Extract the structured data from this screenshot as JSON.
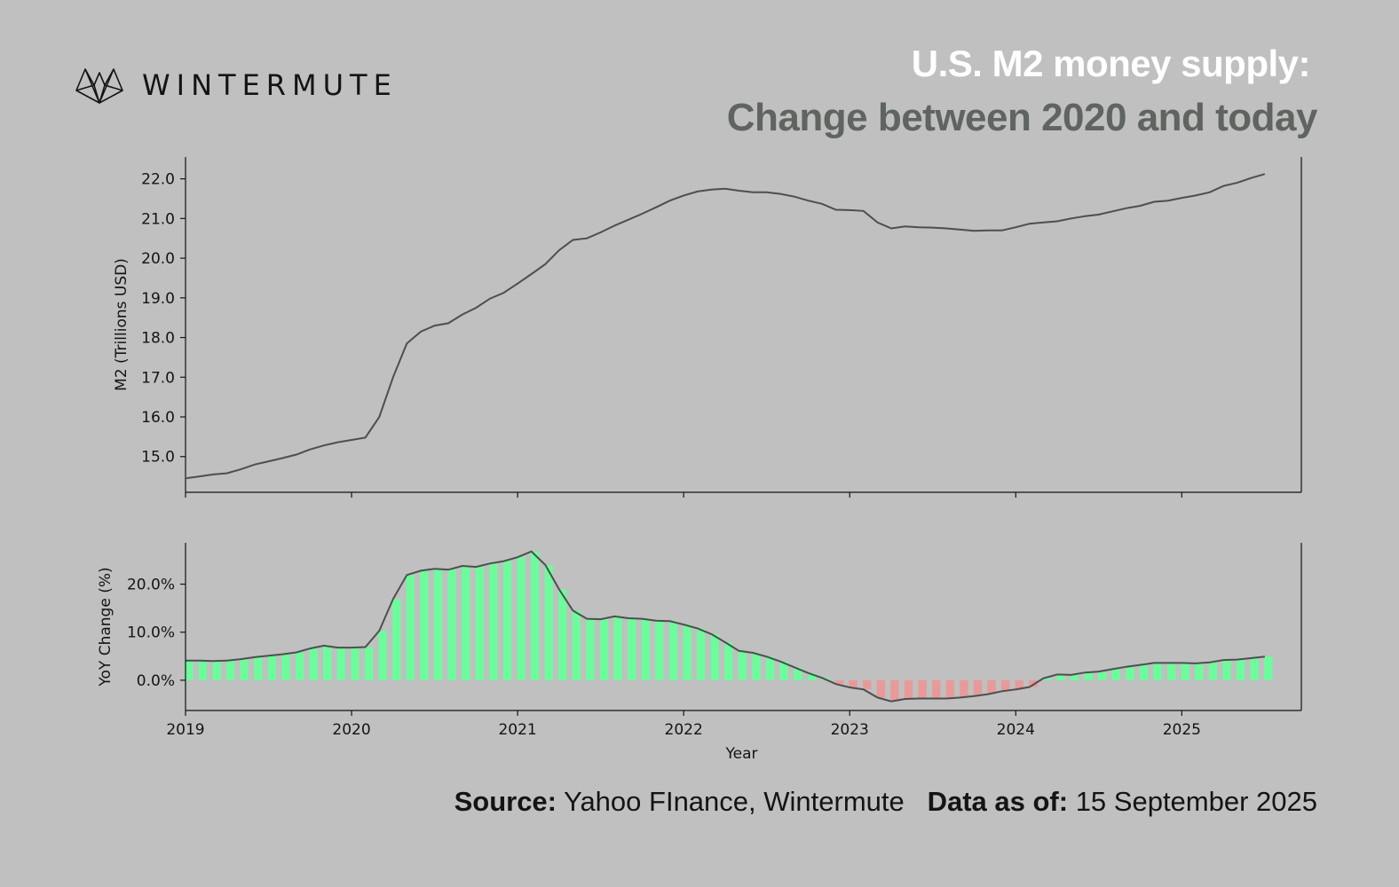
{
  "brand": {
    "name": "WINTERMUTE",
    "logo_icon": "wintermute-logo-icon"
  },
  "title": {
    "line1": "U.S. M2 money supply:",
    "line2": "Change between 2020 and today"
  },
  "footer": {
    "source_label": "Source:",
    "source_value": "Yahoo FInance, Wintermute",
    "date_label": "Data as of:",
    "date_value": "15 September 2025"
  },
  "colors": {
    "background": "#bfc0bf",
    "line": "#4d4f4e",
    "bar_positive": "#6dfc9c",
    "bar_negative": "#e89a9a",
    "title_primary": "#ffffff",
    "title_secondary": "#5f6461"
  },
  "chart_data": [
    {
      "type": "line",
      "title": "",
      "xlabel": "",
      "ylabel": "M2 (Trillions USD)",
      "ylim": [
        14.1,
        22.55
      ],
      "xlim": [
        2019.0,
        2025.72
      ],
      "y_ticks": [
        "15.0",
        "16.0",
        "17.0",
        "18.0",
        "19.0",
        "20.0",
        "21.0",
        "22.0"
      ],
      "series": [
        {
          "x": [
            2019.0,
            2019.083,
            2019.167,
            2019.25,
            2019.333,
            2019.417,
            2019.5,
            2019.583,
            2019.667,
            2019.75,
            2019.833,
            2019.917,
            2020.0,
            2020.083,
            2020.167,
            2020.25,
            2020.333,
            2020.417,
            2020.5,
            2020.583,
            2020.667,
            2020.75,
            2020.833,
            2020.917,
            2021.0,
            2021.083,
            2021.167,
            2021.25,
            2021.333,
            2021.417,
            2021.5,
            2021.583,
            2021.667,
            2021.75,
            2021.833,
            2021.917,
            2022.0,
            2022.083,
            2022.167,
            2022.25,
            2022.333,
            2022.417,
            2022.5,
            2022.583,
            2022.667,
            2022.75,
            2022.833,
            2022.917,
            2023.0,
            2023.083,
            2023.167,
            2023.25,
            2023.333,
            2023.417,
            2023.5,
            2023.583,
            2023.667,
            2023.75,
            2023.833,
            2023.917,
            2024.0,
            2024.083,
            2024.167,
            2024.25,
            2024.333,
            2024.417,
            2024.5,
            2024.583,
            2024.667,
            2024.75,
            2024.833,
            2024.917,
            2025.0,
            2025.083,
            2025.167,
            2025.25,
            2025.333,
            2025.417,
            2025.5
          ],
          "values": [
            14.45,
            14.5,
            14.55,
            14.58,
            14.68,
            14.8,
            14.88,
            14.96,
            15.05,
            15.18,
            15.28,
            15.36,
            15.42,
            15.48,
            16.0,
            17.0,
            17.85,
            18.15,
            18.3,
            18.36,
            18.58,
            18.75,
            18.98,
            19.13,
            19.36,
            19.6,
            19.85,
            20.2,
            20.46,
            20.5,
            20.65,
            20.82,
            20.97,
            21.12,
            21.28,
            21.45,
            21.58,
            21.68,
            21.73,
            21.75,
            21.7,
            21.66,
            21.66,
            21.62,
            21.55,
            21.45,
            21.37,
            21.22,
            21.21,
            21.19,
            20.9,
            20.75,
            20.8,
            20.78,
            20.77,
            20.75,
            20.72,
            20.69,
            20.7,
            20.7,
            20.78,
            20.87,
            20.9,
            20.93,
            21.0,
            21.06,
            21.1,
            21.18,
            21.26,
            21.32,
            21.42,
            21.45,
            21.52,
            21.58,
            21.66,
            21.82,
            21.9,
            22.02,
            22.12
          ]
        }
      ]
    },
    {
      "type": "bar",
      "title": "",
      "xlabel": "Year",
      "ylabel": "YoY Change (%)",
      "ylim": [
        -6.3,
        28.6
      ],
      "xlim": [
        2019.0,
        2025.72
      ],
      "x_ticks": [
        "2019",
        "2020",
        "2021",
        "2022",
        "2023",
        "2024",
        "2025"
      ],
      "y_ticks": [
        "0.0%",
        "10.0%",
        "20.0%"
      ],
      "series": [
        {
          "x": [
            2019.0,
            2019.083,
            2019.167,
            2019.25,
            2019.333,
            2019.417,
            2019.5,
            2019.583,
            2019.667,
            2019.75,
            2019.833,
            2019.917,
            2020.0,
            2020.083,
            2020.167,
            2020.25,
            2020.333,
            2020.417,
            2020.5,
            2020.583,
            2020.667,
            2020.75,
            2020.833,
            2020.917,
            2021.0,
            2021.083,
            2021.167,
            2021.25,
            2021.333,
            2021.417,
            2021.5,
            2021.583,
            2021.667,
            2021.75,
            2021.833,
            2021.917,
            2022.0,
            2022.083,
            2022.167,
            2022.25,
            2022.333,
            2022.417,
            2022.5,
            2022.583,
            2022.667,
            2022.75,
            2022.833,
            2022.917,
            2023.0,
            2023.083,
            2023.167,
            2023.25,
            2023.333,
            2023.417,
            2023.5,
            2023.583,
            2023.667,
            2023.75,
            2023.833,
            2023.917,
            2024.0,
            2024.083,
            2024.167,
            2024.25,
            2024.333,
            2024.417,
            2024.5,
            2024.583,
            2024.667,
            2024.75,
            2024.833,
            2024.917,
            2025.0,
            2025.083,
            2025.167,
            2025.25,
            2025.333,
            2025.417,
            2025.5
          ],
          "values": [
            4.1,
            4.1,
            4.0,
            4.1,
            4.4,
            4.8,
            5.1,
            5.4,
            5.8,
            6.6,
            7.2,
            6.8,
            6.8,
            6.9,
            10.3,
            16.9,
            21.9,
            22.8,
            23.2,
            23.0,
            23.8,
            23.6,
            24.3,
            24.8,
            25.6,
            26.8,
            24.0,
            18.9,
            14.5,
            12.8,
            12.7,
            13.3,
            12.9,
            12.8,
            12.4,
            12.3,
            11.6,
            10.8,
            9.6,
            7.9,
            6.1,
            5.7,
            4.9,
            3.9,
            2.7,
            1.5,
            0.5,
            -0.8,
            -1.5,
            -1.9,
            -3.6,
            -4.4,
            -3.9,
            -3.8,
            -3.8,
            -3.8,
            -3.6,
            -3.3,
            -2.9,
            -2.3,
            -1.9,
            -1.4,
            0.4,
            1.2,
            1.1,
            1.6,
            1.8,
            2.3,
            2.8,
            3.2,
            3.6,
            3.6,
            3.6,
            3.5,
            3.7,
            4.2,
            4.3,
            4.6,
            4.9
          ]
        }
      ]
    }
  ]
}
